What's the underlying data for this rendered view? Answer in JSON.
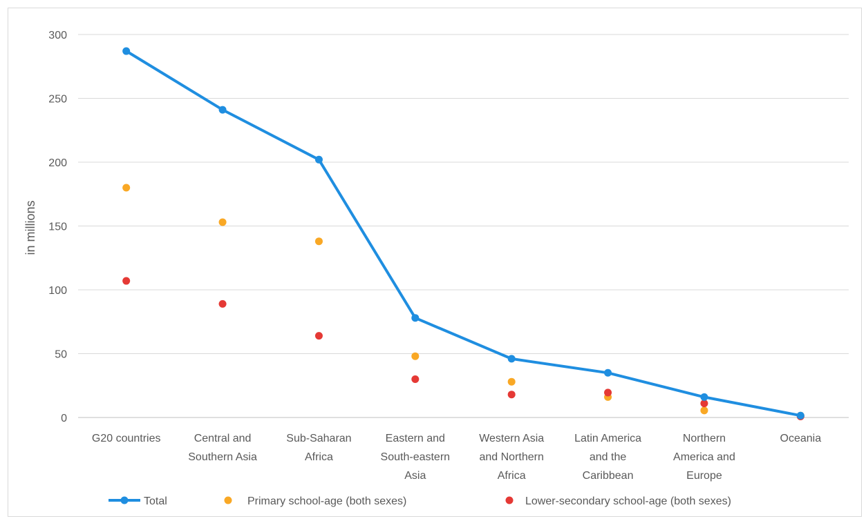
{
  "chart_data": {
    "type": "line",
    "title": "",
    "xlabel": "",
    "ylabel": "in millions",
    "ylim": [
      0,
      300
    ],
    "yticks": [
      0,
      50,
      100,
      150,
      200,
      250,
      300
    ],
    "grid": true,
    "legend_position": "bottom",
    "categories": [
      [
        "G20 countries"
      ],
      [
        "Central and",
        "Southern Asia"
      ],
      [
        "Sub-Saharan",
        "Africa"
      ],
      [
        "Eastern and",
        "South-eastern",
        "Asia"
      ],
      [
        "Western Asia",
        "and Northern",
        "Africa"
      ],
      [
        "Latin America",
        "and the",
        "Caribbean"
      ],
      [
        "Northern",
        "America and",
        "Europe"
      ],
      [
        "Oceania"
      ]
    ],
    "series": [
      {
        "name": "Total",
        "style": "line-marker",
        "color": "#1f8ee0",
        "values": [
          287,
          241,
          202,
          78,
          46,
          35,
          16,
          1.5
        ]
      },
      {
        "name": "Primary school-age (both sexes)",
        "style": "marker",
        "color": "#f9a825",
        "values": [
          180,
          153,
          138,
          48,
          28,
          16,
          5.5,
          1.5
        ]
      },
      {
        "name": "Lower-secondary school-age (both sexes)",
        "style": "marker",
        "color": "#e53935",
        "values": [
          107,
          89,
          64,
          30,
          18,
          19.5,
          11,
          0.8
        ]
      }
    ]
  }
}
